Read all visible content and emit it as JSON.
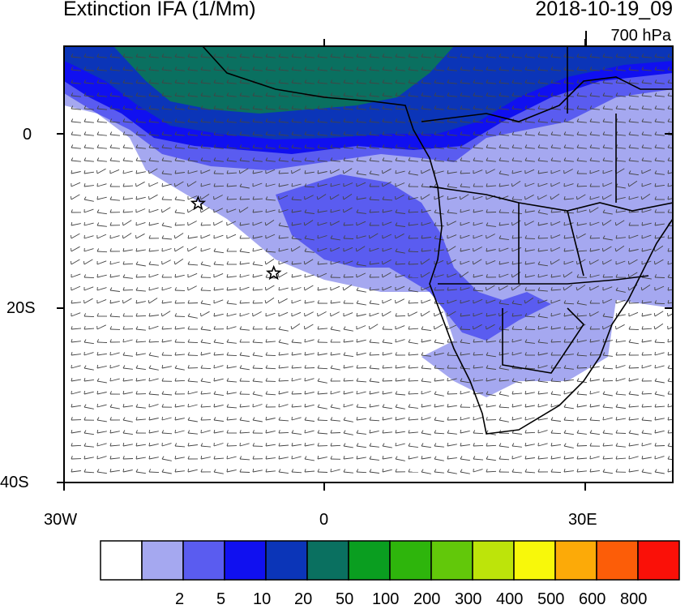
{
  "title": "Extinction IFA (1/Mm)",
  "datetime": "2018-10-19_09",
  "level": "700 hPa",
  "axes": {
    "y_labels": [
      "0",
      "20S",
      "40S"
    ],
    "x_labels": [
      "30W",
      "0",
      "30E"
    ]
  },
  "colorbar": {
    "colors": [
      "#ffffff",
      "#a5a8f0",
      "#5a5cf0",
      "#1010f0",
      "#0b35b8",
      "#0a7060",
      "#0a9e20",
      "#2eb50c",
      "#62c80a",
      "#bde40a",
      "#f8f80a",
      "#fcaa08",
      "#fc5d08",
      "#fa1008"
    ],
    "labels": [
      "2",
      "5",
      "10",
      "20",
      "50",
      "100",
      "200",
      "300",
      "400",
      "500",
      "600",
      "800"
    ]
  },
  "markers": [
    {
      "name": "star",
      "lon": -14.5,
      "lat": -8
    },
    {
      "name": "star",
      "lon": -5.8,
      "lat": -16
    }
  ]
}
